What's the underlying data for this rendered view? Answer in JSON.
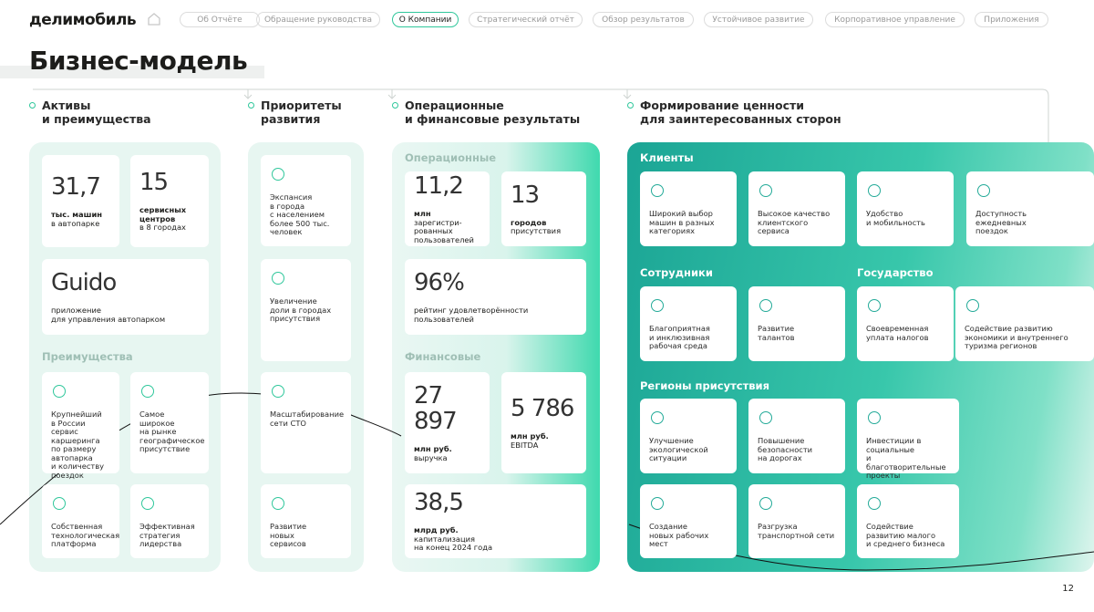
{
  "header": {
    "logo": "делимобиль",
    "nav": [
      "Об Отчёте",
      "Обращение руководства",
      "О Компании",
      "Стратегический отчёт",
      "Обзор результатов",
      "Устойчивое развитие",
      "Корпоративное управление",
      "Приложения"
    ]
  },
  "title": "Бизнес-модель",
  "panels": [
    {
      "heading": "Активы\nи преимущества",
      "groups": [
        {
          "cards": [
            {
              "value": "31,7",
              "unit": "тыс. машин",
              "label": "в автопарке"
            },
            {
              "value": "15",
              "unit": "сервисных\nцентров",
              "label": "в 8 городах"
            },
            {
              "value": "Guido",
              "label": "приложение\nдля управления автопарком"
            }
          ]
        },
        {
          "title": "Преимущества",
          "cards": [
            {
              "text": "Крупнейший\nв России сервис\nкаршеринга\nпо размеру\nавтопарка\nи количеству\nпоездок"
            },
            {
              "text": "Самое\nширокое\nна рынке\nгеографическое\nприсутствие"
            },
            {
              "text": "Собственная\nтехнологическая\nплатформа"
            },
            {
              "text": "Эффективная\nстратегия\nлидерства"
            }
          ]
        }
      ]
    },
    {
      "heading": "Приоритеты\nразвития",
      "groups": [
        {
          "cards": [
            {
              "text": "Экспансия\nв города\nс населением\nболее 500 тыс.\nчеловек"
            },
            {
              "text": "Увеличение\nдоли в городах\nприсутствия"
            },
            {
              "text": "Масштабирование\nсети СТО"
            },
            {
              "text": "Развитие\nновых\nсервисов"
            }
          ]
        }
      ]
    },
    {
      "heading": "Операционные\nи финансовые результаты",
      "groups": [
        {
          "title": "Операционные",
          "cards": [
            {
              "value": "11,2",
              "unit": "млн",
              "label": "зарегистри-\nрованных\nпользователей"
            },
            {
              "value": "13",
              "unit": "городов",
              "label": "присутствия"
            },
            {
              "value": "96%",
              "label": "рейтинг удовлетворённости\nпользователей"
            }
          ]
        },
        {
          "title": "Финансовые",
          "cards": [
            {
              "value": "27 897",
              "unit": "млн руб.",
              "label": "выручка"
            },
            {
              "value": "5 786",
              "unit": "млн руб.",
              "label": "EBITDA"
            },
            {
              "value": "38,5",
              "unit": "млрд руб.",
              "label": "капитализация\nна конец 2024 года"
            }
          ]
        }
      ]
    },
    {
      "heading": "Формирование ценности\nдля заинтересованных сторон",
      "groups": [
        {
          "title": "Клиенты",
          "cards": [
            {
              "text": "Широкий выбор\nмашин в разных\nкатегориях"
            },
            {
              "text": "Высокое качество\nклиентского\nсервиса"
            },
            {
              "text": "Удобство\nи мобильность"
            },
            {
              "text": "Доступность\nежедневных\nпоездок"
            }
          ]
        },
        {
          "title": "Сотрудники",
          "cards": [
            {
              "text": "Благоприятная\nи инклюзивная\nрабочая среда"
            },
            {
              "text": "Развитие\nталантов"
            }
          ]
        },
        {
          "title": "Государство",
          "cards": [
            {
              "text": "Своевременная\nуплата налогов"
            },
            {
              "text": "Содействие развитию\nэкономики и внутреннего\nтуризма регионов"
            }
          ]
        },
        {
          "title": "Регионы присутствия",
          "cards": [
            {
              "text": "Улучшение\nэкологической\nситуации"
            },
            {
              "text": "Повышение\nбезопасности\nна дорогах"
            },
            {
              "text": "Инвестиции в социальные\nи благотворительные\nпроекты"
            },
            {
              "text": "Создание\nновых рабочих\nмест"
            },
            {
              "text": "Разгрузка\nтранспортной сети"
            },
            {
              "text": "Содействие\nразвитию малого\nи среднего бизнеса"
            }
          ]
        }
      ]
    }
  ],
  "page_number": "12"
}
